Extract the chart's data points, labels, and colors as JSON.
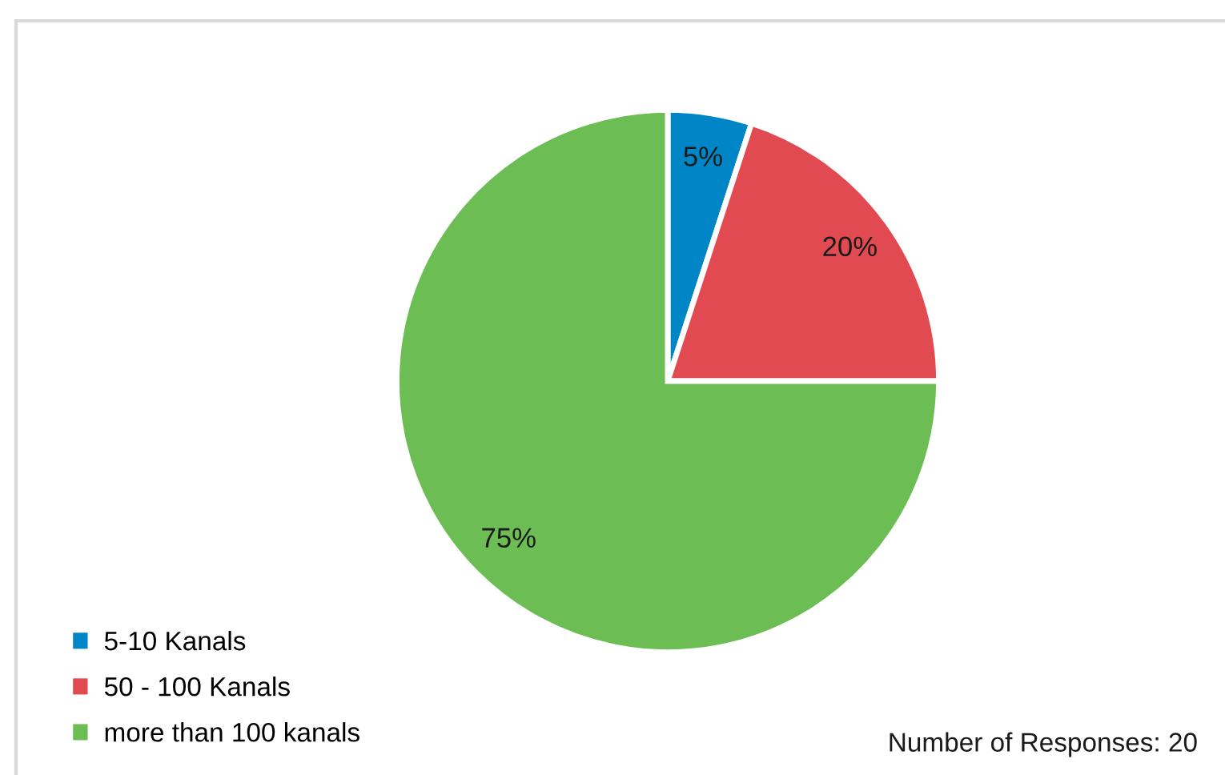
{
  "chart_data": {
    "type": "pie",
    "categories": [
      "5-10 Kanals",
      "50 - 100 Kanals",
      "more than 100 kanals"
    ],
    "values": [
      5,
      20,
      75
    ],
    "colors": [
      "#0086c6",
      "#e24a51",
      "#6bbd54"
    ],
    "value_labels": [
      "5%",
      "20%",
      "75%"
    ],
    "legend": "bottom left",
    "annotations": [
      "Number of Responses: 20"
    ]
  }
}
